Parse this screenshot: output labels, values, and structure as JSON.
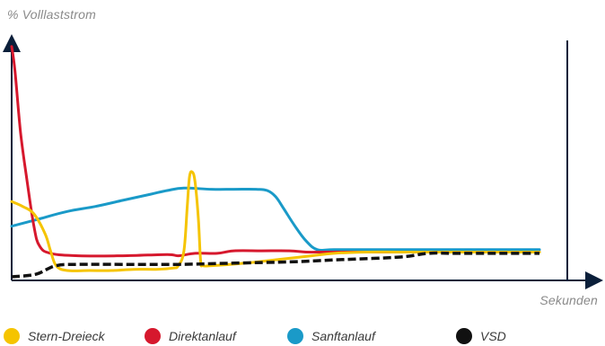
{
  "chart_data": {
    "type": "line",
    "ylabel": "% Volllaststrom",
    "xlabel": "Sekunden",
    "xlim": [
      0,
      100
    ],
    "ylim": [
      0,
      100
    ],
    "grid": false,
    "legend_position": "bottom",
    "series": [
      {
        "name": "Stern-Dreieck",
        "color": "#f5c400",
        "style": "solid",
        "points": [
          [
            0,
            32
          ],
          [
            2,
            30
          ],
          [
            4,
            27
          ],
          [
            6,
            19
          ],
          [
            7,
            12
          ],
          [
            8,
            6
          ],
          [
            10,
            4
          ],
          [
            14,
            4
          ],
          [
            18,
            4
          ],
          [
            22,
            4.5
          ],
          [
            26,
            4.5
          ],
          [
            29,
            5
          ],
          [
            30,
            6
          ],
          [
            31,
            12
          ],
          [
            31.6,
            30
          ],
          [
            32,
            42
          ],
          [
            32.5,
            44
          ],
          [
            33,
            40
          ],
          [
            33.6,
            25
          ],
          [
            34,
            8
          ],
          [
            34.4,
            6
          ],
          [
            36,
            6
          ],
          [
            42,
            7
          ],
          [
            48,
            8.5
          ],
          [
            54,
            10
          ],
          [
            58,
            11
          ],
          [
            64,
            11.5
          ],
          [
            70,
            11.5
          ],
          [
            80,
            11.5
          ],
          [
            95,
            11.5
          ]
        ]
      },
      {
        "name": "Direktanlauf",
        "color": "#d6182d",
        "style": "solid",
        "points": [
          [
            0,
            95
          ],
          [
            0.6,
            85
          ],
          [
            1.6,
            60
          ],
          [
            2.8,
            40
          ],
          [
            4,
            22
          ],
          [
            5,
            14
          ],
          [
            7,
            11
          ],
          [
            12,
            10
          ],
          [
            20,
            10
          ],
          [
            28,
            10.5
          ],
          [
            30,
            10
          ],
          [
            33,
            11
          ],
          [
            37,
            11
          ],
          [
            40,
            12
          ],
          [
            45,
            12
          ],
          [
            50,
            12
          ],
          [
            53,
            11.5
          ],
          [
            56,
            11.5
          ],
          [
            60,
            11.5
          ],
          [
            70,
            11.5
          ],
          [
            80,
            11.5
          ],
          [
            95,
            11.5
          ]
        ]
      },
      {
        "name": "Sanftanlauf",
        "color": "#1a9ac8",
        "style": "solid",
        "points": [
          [
            0,
            22
          ],
          [
            5,
            25
          ],
          [
            10,
            28
          ],
          [
            15,
            30
          ],
          [
            20,
            32.5
          ],
          [
            25,
            35
          ],
          [
            28,
            36.5
          ],
          [
            31,
            37.5
          ],
          [
            36,
            37
          ],
          [
            40,
            37
          ],
          [
            44,
            37
          ],
          [
            46,
            36.5
          ],
          [
            47.5,
            34
          ],
          [
            49,
            29
          ],
          [
            51,
            22
          ],
          [
            53,
            16
          ],
          [
            55,
            12.5
          ],
          [
            58,
            12.5
          ],
          [
            65,
            12.5
          ],
          [
            70,
            12.5
          ],
          [
            80,
            12.5
          ],
          [
            95,
            12.5
          ]
        ]
      },
      {
        "name": "VSD",
        "color": "#111111",
        "style": "dashed",
        "points": [
          [
            0,
            1.5
          ],
          [
            3,
            2
          ],
          [
            5,
            3
          ],
          [
            8,
            6
          ],
          [
            12,
            6.5
          ],
          [
            20,
            6.5
          ],
          [
            30,
            6.5
          ],
          [
            40,
            7
          ],
          [
            50,
            7.5
          ],
          [
            55,
            8
          ],
          [
            60,
            8.5
          ],
          [
            70,
            9.5
          ],
          [
            75,
            11
          ],
          [
            80,
            11
          ],
          [
            88,
            11
          ],
          [
            95,
            11
          ]
        ]
      }
    ]
  }
}
